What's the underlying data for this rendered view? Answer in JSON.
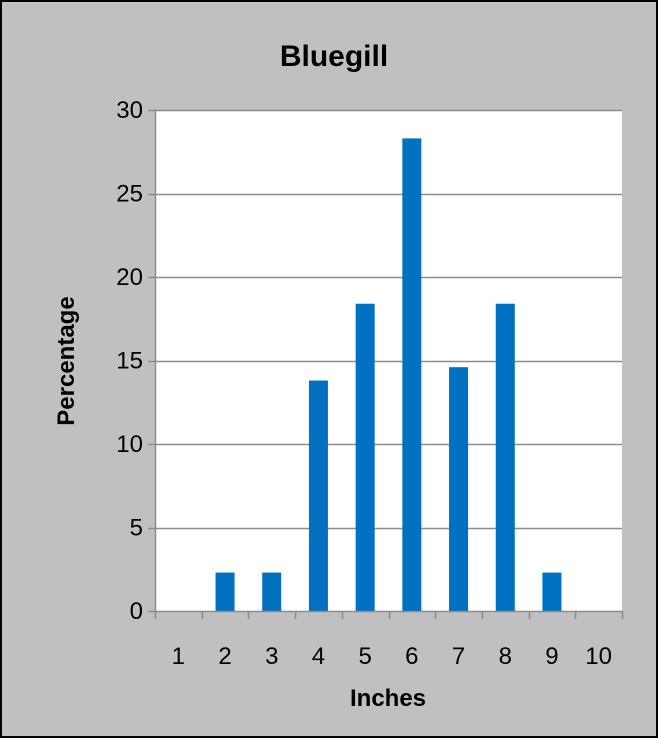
{
  "colors": {
    "frame_background": "#C0C0C0",
    "plot_background": "#FFFFFF",
    "bar_fill": "#0070C0",
    "gridline": "#8C8C8C",
    "axis": "#8C8C8C",
    "border": "#000000"
  },
  "chart_data": {
    "type": "bar",
    "title": "Bluegill",
    "xlabel": "Inches",
    "ylabel": "Percentage",
    "categories": [
      "1",
      "2",
      "3",
      "4",
      "5",
      "6",
      "7",
      "8",
      "9",
      "10"
    ],
    "values": [
      0,
      2.3,
      2.3,
      13.8,
      18.4,
      28.3,
      14.6,
      18.4,
      2.3,
      0
    ],
    "ylim": [
      0,
      30
    ],
    "yticks": [
      0,
      5,
      10,
      15,
      20,
      25,
      30
    ],
    "grid": true,
    "legend": "none"
  }
}
